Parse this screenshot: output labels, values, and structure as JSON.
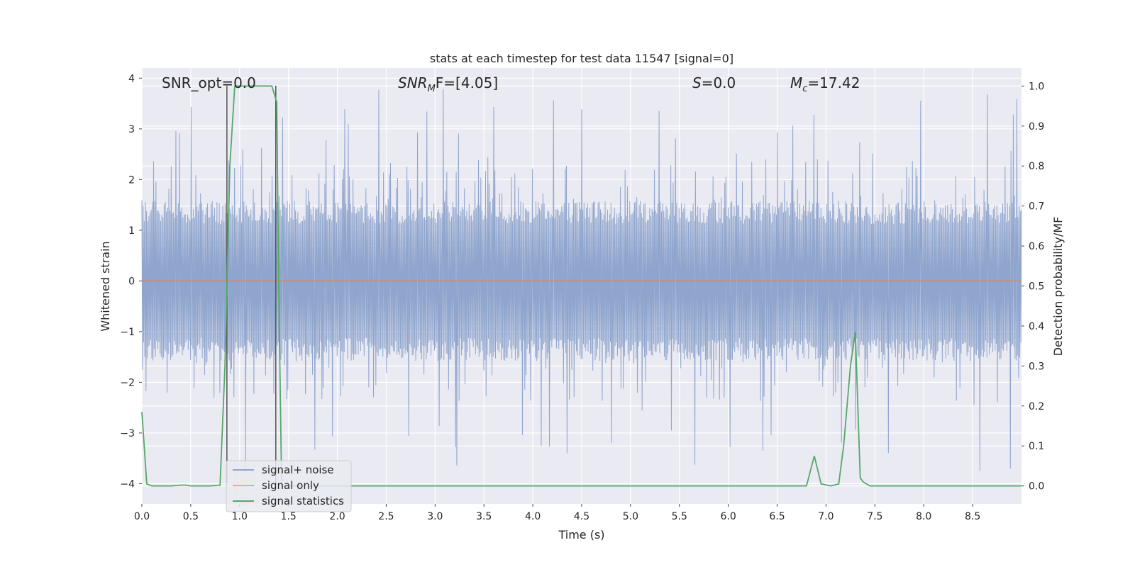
{
  "chart_data": {
    "type": "line",
    "title": "stats at each timestep for test data 11547 [signal=0]",
    "xlabel": "Time (s)",
    "ylabel": "Whitened strain",
    "y2label": "Detection probability/MF",
    "xlim": [
      0,
      9.0
    ],
    "ylim": [
      -4.4,
      4.2
    ],
    "y2lim": [
      -0.045,
      1.045
    ],
    "x_ticks": [
      0.0,
      0.5,
      1.0,
      1.5,
      2.0,
      2.5,
      3.0,
      3.5,
      4.0,
      4.5,
      5.0,
      5.5,
      6.0,
      6.5,
      7.0,
      7.5,
      8.0,
      8.5
    ],
    "x_tick_labels": [
      "0.0",
      "0.5",
      "1.0",
      "1.5",
      "2.0",
      "2.5",
      "3.0",
      "3.5",
      "4.0",
      "4.5",
      "5.0",
      "5.5",
      "6.0",
      "6.5",
      "7.0",
      "7.5",
      "8.0",
      "8.5"
    ],
    "y_ticks": [
      4,
      3,
      2,
      1,
      0,
      -1,
      -2,
      -3,
      -4
    ],
    "y_tick_labels": [
      "4",
      "3",
      "2",
      "1",
      "0",
      "−1",
      "−2",
      "−3",
      "−4"
    ],
    "y2_ticks": [
      1.0,
      0.9,
      0.8,
      0.7,
      0.6,
      0.5,
      0.4,
      0.3,
      0.2,
      0.1,
      0.0
    ],
    "y2_tick_labels": [
      "1.0",
      "0.9",
      "0.8",
      "0.7",
      "0.6",
      "0.5",
      "0.4",
      "0.3",
      "0.2",
      "0.1",
      "0.0"
    ],
    "grid": true,
    "legend_position": "lower-left",
    "annotations": {
      "snr_opt": "SNR_opt=0.0",
      "snr_mf_base": "SNR",
      "snr_mf_sub": "M",
      "snr_mf_rest": "F=[4.05]",
      "s_stat_name": "S",
      "s_stat_rest": "=0.0",
      "mc_name": "M",
      "mc_sub": "c",
      "mc_rest": "=17.42"
    },
    "series": [
      {
        "name": "signal+ noise",
        "color": "#8fa5cd",
        "noise_envelope": {
          "typical_abs": 1.5,
          "peak_max": 3.9,
          "peak_min": -4.0
        }
      },
      {
        "name": "signal only",
        "color": "#dd8452",
        "x": [
          0.0,
          9.0
        ],
        "y": [
          0.0,
          0.0
        ]
      },
      {
        "name": "signal statistics",
        "color": "#55a868",
        "axis": "right",
        "x": [
          0.0,
          0.05,
          0.1,
          0.15,
          0.2,
          0.3,
          0.4,
          0.45,
          0.5,
          0.6,
          0.7,
          0.8,
          0.85,
          0.9,
          0.95,
          1.0,
          1.1,
          1.2,
          1.3,
          1.33,
          1.38,
          1.4,
          1.43,
          1.5,
          2.0,
          3.0,
          4.0,
          5.0,
          6.0,
          6.5,
          6.8,
          6.88,
          6.95,
          7.05,
          7.13,
          7.18,
          7.25,
          7.3,
          7.35,
          7.38,
          7.45,
          7.5,
          8.0,
          8.5,
          9.0
        ],
        "y": [
          0.185,
          0.005,
          0.0,
          0.0,
          0.0,
          0.0,
          0.002,
          0.002,
          0.0,
          0.0,
          0.0,
          0.002,
          0.3,
          0.8,
          1.0,
          1.0,
          1.0,
          1.0,
          1.0,
          1.0,
          0.96,
          0.5,
          0.0,
          0.0,
          0.0,
          0.0,
          0.0,
          0.0,
          0.0,
          0.0,
          0.0,
          0.075,
          0.005,
          0.0,
          0.005,
          0.1,
          0.3,
          0.385,
          0.02,
          0.01,
          0.0,
          0.0,
          0.0,
          0.0,
          0.0
        ]
      }
    ],
    "vertical_markers": [
      {
        "x": 0.87,
        "color": "#555555"
      },
      {
        "x": 1.37,
        "color": "#555555"
      }
    ]
  }
}
